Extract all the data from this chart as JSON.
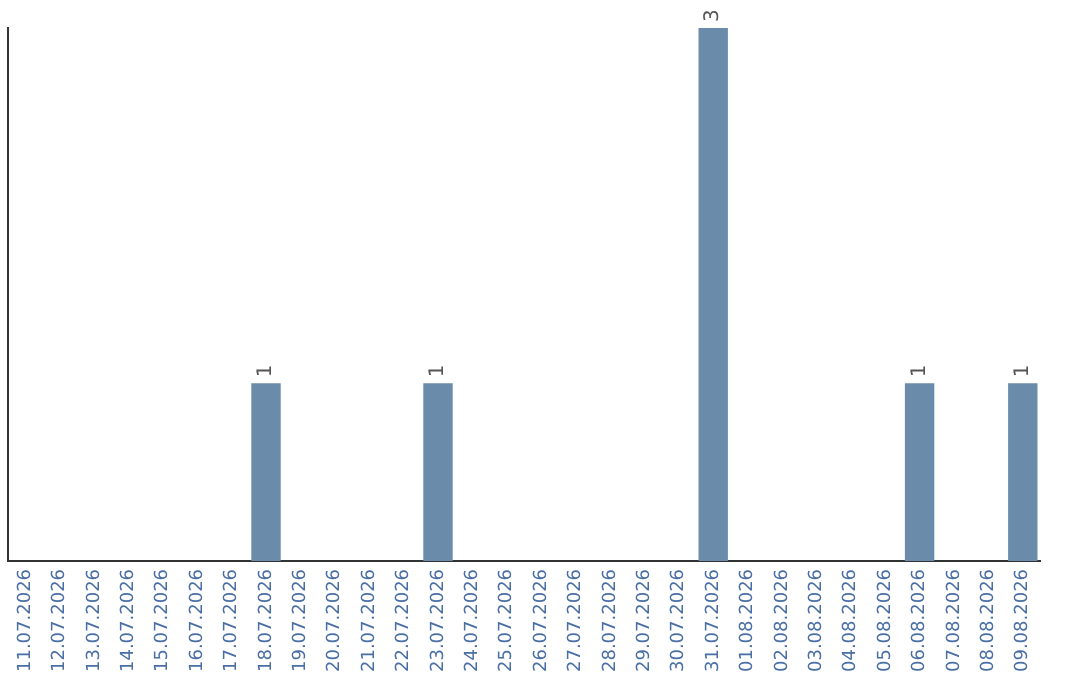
{
  "chart_data": {
    "type": "bar",
    "categories": [
      "11.07.2026",
      "12.07.2026",
      "13.07.2026",
      "14.07.2026",
      "15.07.2026",
      "16.07.2026",
      "17.07.2026",
      "18.07.2026",
      "19.07.2026",
      "20.07.2026",
      "21.07.2026",
      "22.07.2026",
      "23.07.2026",
      "24.07.2026",
      "25.07.2026",
      "26.07.2026",
      "27.07.2026",
      "28.07.2026",
      "29.07.2026",
      "30.07.2026",
      "31.07.2026",
      "01.08.2026",
      "02.08.2026",
      "03.08.2026",
      "04.08.2026",
      "05.08.2026",
      "06.08.2026",
      "07.08.2026",
      "08.08.2026",
      "09.08.2026"
    ],
    "values": [
      0,
      0,
      0,
      0,
      0,
      0,
      0,
      1,
      0,
      0,
      0,
      0,
      1,
      0,
      0,
      0,
      0,
      0,
      0,
      0,
      3,
      0,
      0,
      0,
      0,
      0,
      1,
      0,
      0,
      1
    ],
    "value_labels": [
      null,
      null,
      null,
      null,
      null,
      null,
      null,
      "1",
      null,
      null,
      null,
      null,
      "1",
      null,
      null,
      null,
      null,
      null,
      null,
      null,
      "3",
      null,
      null,
      null,
      null,
      null,
      "1",
      null,
      null,
      "1"
    ],
    "color": "#6a8caa",
    "grid": false,
    "legend": false,
    "tick_labels": "x"
  }
}
